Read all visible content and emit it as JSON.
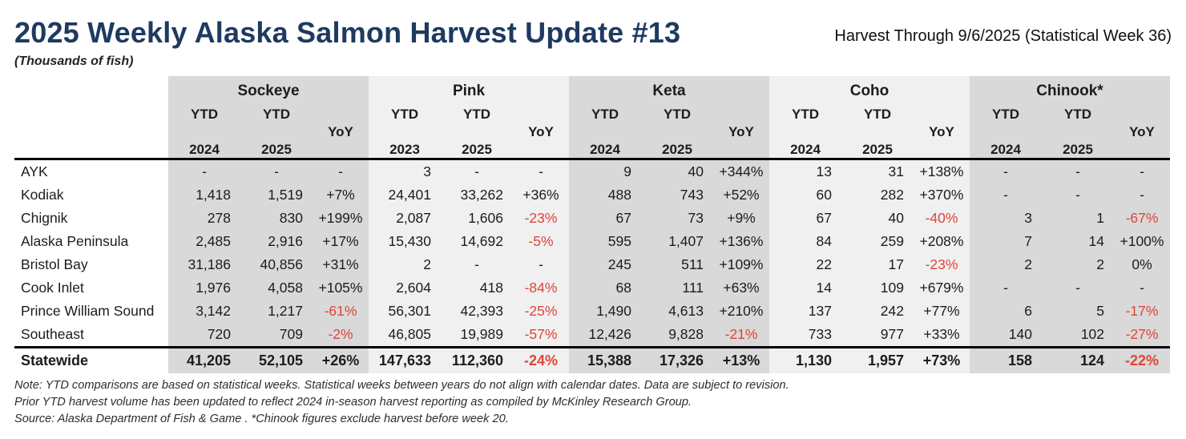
{
  "page": {
    "title": "2025 Weekly Alaska Salmon Harvest Update #13",
    "units_label": "(Thousands of fish)",
    "harvest_through": "Harvest Through 9/6/2025 (Statistical Week 36)"
  },
  "colors": {
    "title_navy": "#1e3a60",
    "negative_red": "#e04438",
    "band_dark": "#d9d9d9",
    "band_light": "#f0f0f0"
  },
  "chart_data": {
    "type": "table",
    "title": "2025 Weekly Alaska Salmon Harvest Update #13",
    "units": "Thousands of fish",
    "timeframe": "Harvest Through 9/6/2025 (Statistical Week 36)",
    "species_groups": [
      {
        "species": "Sockeye",
        "columns": [
          "YTD 2024",
          "YTD 2025",
          "YoY"
        ],
        "shade": "dark"
      },
      {
        "species": "Pink",
        "columns": [
          "YTD 2023",
          "YTD 2025",
          "YoY"
        ],
        "shade": "light"
      },
      {
        "species": "Keta",
        "columns": [
          "YTD 2024",
          "YTD 2025",
          "YoY"
        ],
        "shade": "dark"
      },
      {
        "species": "Coho",
        "columns": [
          "YTD 2024",
          "YTD 2025",
          "YoY"
        ],
        "shade": "light"
      },
      {
        "species": "Chinook*",
        "columns": [
          "YTD 2024",
          "YTD 2025",
          "YoY"
        ],
        "shade": "dark"
      }
    ],
    "rows": [
      {
        "region": "AYK",
        "total": false,
        "values": [
          "-",
          "-",
          "-",
          "3",
          "-",
          "-",
          "9",
          "40",
          "+344%",
          "13",
          "31",
          "+138%",
          "-",
          "-",
          "-"
        ]
      },
      {
        "region": "Kodiak",
        "total": false,
        "values": [
          "1,418",
          "1,519",
          "+7%",
          "24,401",
          "33,262",
          "+36%",
          "488",
          "743",
          "+52%",
          "60",
          "282",
          "+370%",
          "-",
          "-",
          "-"
        ]
      },
      {
        "region": "Chignik",
        "total": false,
        "values": [
          "278",
          "830",
          "+199%",
          "2,087",
          "1,606",
          "-23%",
          "67",
          "73",
          "+9%",
          "67",
          "40",
          "-40%",
          "3",
          "1",
          "-67%"
        ]
      },
      {
        "region": "Alaska Peninsula",
        "total": false,
        "values": [
          "2,485",
          "2,916",
          "+17%",
          "15,430",
          "14,692",
          "-5%",
          "595",
          "1,407",
          "+136%",
          "84",
          "259",
          "+208%",
          "7",
          "14",
          "+100%"
        ]
      },
      {
        "region": "Bristol Bay",
        "total": false,
        "values": [
          "31,186",
          "40,856",
          "+31%",
          "2",
          "-",
          "-",
          "245",
          "511",
          "+109%",
          "22",
          "17",
          "-23%",
          "2",
          "2",
          "0%"
        ]
      },
      {
        "region": "Cook Inlet",
        "total": false,
        "values": [
          "1,976",
          "4,058",
          "+105%",
          "2,604",
          "418",
          "-84%",
          "68",
          "111",
          "+63%",
          "14",
          "109",
          "+679%",
          "-",
          "-",
          "-"
        ]
      },
      {
        "region": "Prince William Sound",
        "total": false,
        "values": [
          "3,142",
          "1,217",
          "-61%",
          "56,301",
          "42,393",
          "-25%",
          "1,490",
          "4,613",
          "+210%",
          "137",
          "242",
          "+77%",
          "6",
          "5",
          "-17%"
        ]
      },
      {
        "region": "Southeast",
        "total": false,
        "values": [
          "720",
          "709",
          "-2%",
          "46,805",
          "19,989",
          "-57%",
          "12,426",
          "9,828",
          "-21%",
          "733",
          "977",
          "+33%",
          "140",
          "102",
          "-27%"
        ]
      },
      {
        "region": "Statewide",
        "total": true,
        "values": [
          "41,205",
          "52,105",
          "+26%",
          "147,633",
          "112,360",
          "-24%",
          "15,388",
          "17,326",
          "+13%",
          "1,130",
          "1,957",
          "+73%",
          "158",
          "124",
          "-22%"
        ]
      }
    ]
  },
  "notes": [
    "Note: YTD comparisons are based on statistical weeks. Statistical weeks between years do not align with calendar dates. Data are subject to revision.",
    "Prior YTD harvest volume has been updated to reflect 2024 in-season harvest reporting as compiled by McKinley Research Group.",
    "Source: Alaska Department of Fish & Game . *Chinook figures exclude harvest before week 20."
  ]
}
